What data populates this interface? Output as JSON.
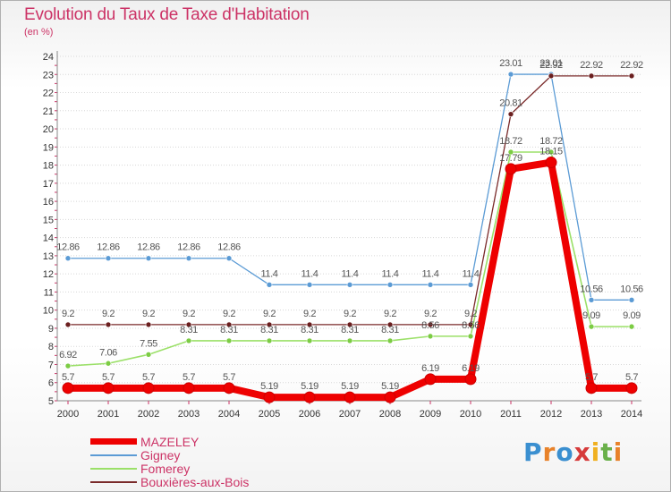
{
  "header": {
    "title": "Evolution du Taux de Taxe d'Habitation",
    "unit": "(en %)"
  },
  "logo": {
    "text": "Proxiti",
    "letter_colors": [
      "#3a8fd0",
      "#e8822a",
      "#3a8fd0",
      "#d63a3a",
      "#f0b020",
      "#6ab04a",
      "#e8822a"
    ]
  },
  "chart_data": {
    "type": "line",
    "title": "Evolution du Taux de Taxe d'Habitation",
    "subtitle": "(en %)",
    "xlabel": "",
    "ylabel": "",
    "x": [
      "2000",
      "2001",
      "2002",
      "2003",
      "2004",
      "2005",
      "2006",
      "2007",
      "2008",
      "2009",
      "2010",
      "2011",
      "2012",
      "2013",
      "2014"
    ],
    "ylim": [
      5,
      24
    ],
    "yticks": [
      "5",
      "6",
      "7",
      "8",
      "9",
      "10",
      "11",
      "12",
      "13",
      "14",
      "15",
      "16",
      "17",
      "18",
      "19",
      "20",
      "21",
      "22",
      "23",
      "24"
    ],
    "grid": "dotted horizontal",
    "legend_position": "bottom-left",
    "series": [
      {
        "name": "Gigney",
        "color": "#5b9bd5",
        "values": [
          12.86,
          12.86,
          12.86,
          12.86,
          12.86,
          11.4,
          11.4,
          11.4,
          11.4,
          11.4,
          11.4,
          23.01,
          23.01,
          10.56,
          10.56
        ],
        "labels": [
          "12.86",
          "12.86",
          "12.86",
          "12.86",
          "12.86",
          "11.4",
          "11.4",
          "11.4",
          "11.4",
          "11.4",
          "11.4",
          "23.01",
          "23.01",
          "10.56",
          "10.56"
        ]
      },
      {
        "name": "Bouxières-aux-Bois",
        "color": "#7a2a2a",
        "values": [
          9.2,
          9.2,
          9.2,
          9.2,
          9.2,
          9.2,
          9.2,
          9.2,
          9.2,
          9.2,
          9.2,
          20.81,
          22.92,
          22.92,
          22.92
        ],
        "labels": [
          "9.2",
          "9.2",
          "9.2",
          "9.2",
          "9.2",
          "9.2",
          "9.2",
          "9.2",
          "9.2",
          "9.2",
          "9.2",
          "20.81",
          "22.92",
          "22.92",
          "22.92"
        ]
      },
      {
        "name": "Fomerey",
        "color": "#9be068",
        "values": [
          6.92,
          7.06,
          7.55,
          8.31,
          8.31,
          8.31,
          8.31,
          8.31,
          8.31,
          8.56,
          8.56,
          18.72,
          18.72,
          9.09,
          9.09
        ],
        "labels": [
          "6.92",
          "7.06",
          "7.55",
          "8.31",
          "8.31",
          "8.31",
          "8.31",
          "8.31",
          "8.31",
          "8.56",
          "8.56",
          "18.72",
          "18.72",
          "9.09",
          "9.09"
        ]
      },
      {
        "name": "MAZELEY",
        "color": "#ee0000",
        "values": [
          5.7,
          5.7,
          5.7,
          5.7,
          5.7,
          5.19,
          5.19,
          5.19,
          5.19,
          6.19,
          6.19,
          17.79,
          18.15,
          5.7,
          5.7
        ],
        "labels": [
          "5.7",
          "5.7",
          "5.7",
          "5.7",
          "5.7",
          "5.19",
          "5.19",
          "5.19",
          "5.19",
          "6.19",
          "6.19",
          "17.79",
          "18.15",
          "5.7",
          "5.7"
        ]
      }
    ],
    "legend": [
      "MAZELEY",
      "Gigney",
      "Fomerey",
      "Bouxières-aux-Bois"
    ]
  }
}
